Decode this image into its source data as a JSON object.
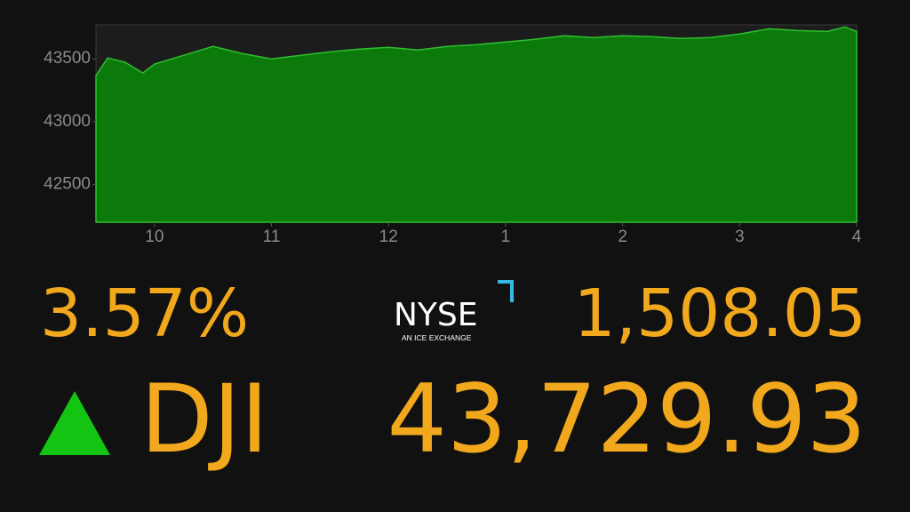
{
  "chart_data": {
    "type": "area",
    "x": [
      9.5,
      9.6,
      9.75,
      9.9,
      10,
      10.25,
      10.5,
      10.75,
      11,
      11.25,
      11.5,
      11.75,
      12,
      12.25,
      12.5,
      12.75,
      13,
      13.25,
      13.5,
      13.75,
      14,
      14.25,
      14.5,
      14.75,
      15,
      15.25,
      15.5,
      15.75,
      15.9,
      16
    ],
    "y": [
      43366,
      43507,
      43472,
      43387,
      43458,
      43528,
      43599,
      43542,
      43500,
      43528,
      43556,
      43577,
      43592,
      43570,
      43599,
      43613,
      43634,
      43655,
      43683,
      43669,
      43683,
      43676,
      43662,
      43669,
      43697,
      43739,
      43725,
      43718,
      43754,
      43718
    ],
    "color": "#0b7a0b",
    "line_color": "#2fbf2f",
    "xlim": [
      9.5,
      16
    ],
    "xticks": [
      10,
      11,
      12,
      {
        "value": 13,
        "label": "1"
      },
      {
        "value": 14,
        "label": "2"
      },
      {
        "value": 15,
        "label": "3"
      },
      {
        "value": 16,
        "label": "4"
      }
    ],
    "ylim": [
      42200,
      43770
    ],
    "yticks": [
      42500,
      43000,
      43500
    ]
  },
  "ticker": {
    "change_percent": "3.57%",
    "change_points": "1,508.05",
    "symbol": "DJI",
    "price": "43,729.93",
    "exchange": "NYSE",
    "exchange_tagline": "AN ICE EXCHANGE"
  }
}
